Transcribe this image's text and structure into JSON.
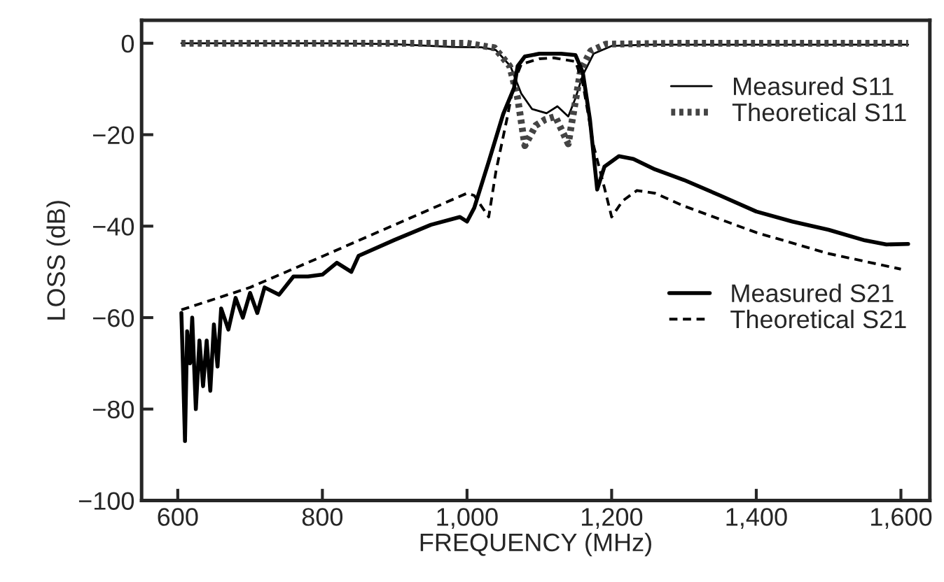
{
  "chart_data": {
    "type": "line",
    "xlabel": "FREQUENCY (MHz)",
    "ylabel": "LOSS (dB)",
    "xlim": [
      550,
      1640
    ],
    "ylim": [
      -100,
      5
    ],
    "xticks": [
      600,
      800,
      {
        "value": 1000,
        "label": "1,000"
      },
      {
        "value": 1200,
        "label": "1,200"
      },
      {
        "value": 1400,
        "label": "1,400"
      },
      {
        "value": 1600,
        "label": "1,600"
      }
    ],
    "yticks": [
      {
        "value": -100,
        "label": "−100"
      },
      {
        "value": -80,
        "label": "−80"
      },
      {
        "value": -60,
        "label": "−60"
      },
      {
        "value": -40,
        "label": "−40"
      },
      {
        "value": -20,
        "label": "−20"
      },
      0
    ],
    "grid": false,
    "legend": "right",
    "series": [
      {
        "name": "Measured S11",
        "color": "#000000",
        "line_style": "solid",
        "x": [
          605,
          700,
          800,
          900,
          980,
          1020,
          1040,
          1060,
          1075,
          1090,
          1110,
          1125,
          1140,
          1150,
          1160,
          1175,
          1200,
          1250,
          1400,
          1610
        ],
        "values": [
          0,
          0,
          0,
          -0.2,
          -0.8,
          -0.9,
          -1.5,
          -5,
          -11,
          -14.4,
          -15.3,
          -13.8,
          -16,
          -12,
          -7,
          -2.3,
          -0.6,
          -0.3,
          -0.3,
          -0.3
        ]
      },
      {
        "name": "Theoretical S11",
        "color": "#444444",
        "line_style": "dotted",
        "x": [
          605,
          800,
          1000,
          1038,
          1059,
          1070,
          1080,
          1095,
          1108,
          1122,
          1140,
          1157,
          1171,
          1192,
          1300,
          1610
        ],
        "values": [
          0,
          0,
          0,
          -1,
          -5,
          -12,
          -22.4,
          -18,
          -16.7,
          -16,
          -22,
          -6,
          -1.7,
          -0.2,
          0,
          0
        ]
      },
      {
        "name": "Measured S21",
        "color": "#000000",
        "line_style": "solid",
        "x": [
          605,
          607,
          610,
          613,
          617,
          620,
          625,
          630,
          635,
          640,
          645,
          650,
          655,
          660,
          670,
          680,
          690,
          700,
          710,
          720,
          740,
          760,
          780,
          800,
          820,
          840,
          850,
          900,
          950,
          990,
          1000,
          1010,
          1030,
          1050,
          1065,
          1070,
          1080,
          1100,
          1130,
          1150,
          1160,
          1170,
          1180,
          1190,
          1210,
          1230,
          1260,
          1300,
          1350,
          1400,
          1450,
          1500,
          1550,
          1580,
          1610
        ],
        "values": [
          -59,
          -69.5,
          -87,
          -63,
          -70,
          -60,
          -80,
          -65,
          -75,
          -65,
          -76,
          -61.5,
          -70.7,
          -58,
          -62.6,
          -55.7,
          -60,
          -54.6,
          -59,
          -53.4,
          -55,
          -51,
          -51,
          -50.6,
          -48,
          -50,
          -46.5,
          -43,
          -39.7,
          -38,
          -39,
          -36,
          -25.9,
          -15.5,
          -9.8,
          -5,
          -2.9,
          -2.3,
          -2.3,
          -2.6,
          -6.3,
          -16.7,
          -32,
          -27,
          -24.7,
          -25.3,
          -27.6,
          -29.9,
          -33.3,
          -36.8,
          -39,
          -40.8,
          -43.1,
          -44,
          -43.9
        ]
      },
      {
        "name": "Theoretical S21",
        "color": "#000000",
        "line_style": "dashed",
        "x": [
          605,
          700,
          800,
          900,
          1000,
          1010,
          1030,
          1040,
          1055,
          1065,
          1075,
          1100,
          1120,
          1150,
          1160,
          1175,
          1190,
          1200,
          1215,
          1235,
          1260,
          1300,
          1400,
          1500,
          1600
        ],
        "values": [
          -58.3,
          -53.4,
          -46.6,
          -39.7,
          -32.8,
          -33.3,
          -38,
          -28,
          -16.7,
          -8.6,
          -4.6,
          -3.4,
          -3.2,
          -4,
          -8.6,
          -22.4,
          -31.6,
          -38,
          -34.5,
          -32.2,
          -32.8,
          -35.6,
          -41.4,
          -46,
          -49.4
        ]
      }
    ]
  }
}
